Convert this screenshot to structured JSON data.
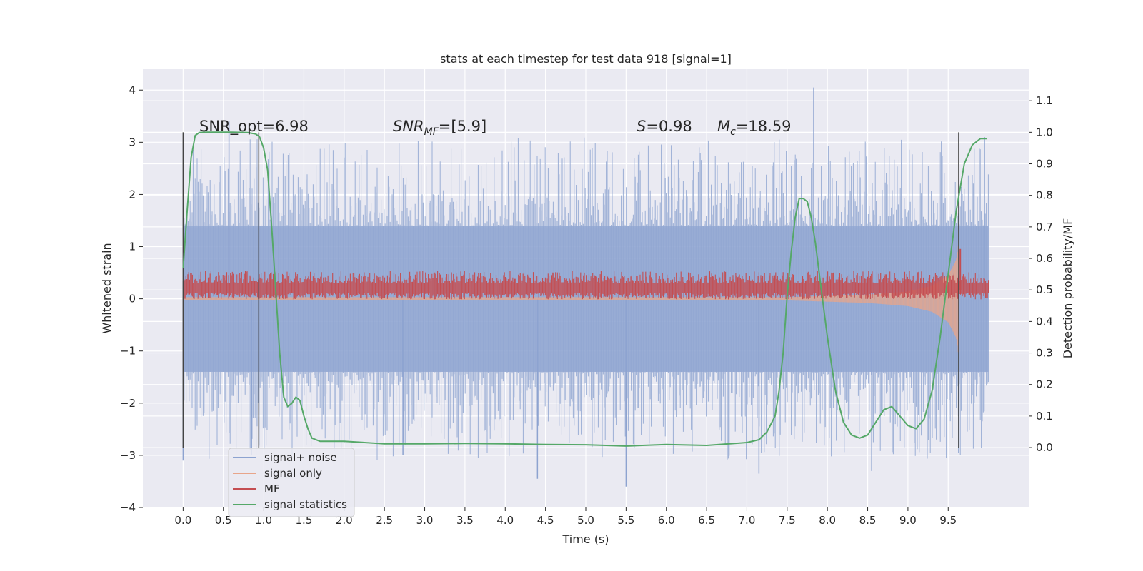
{
  "chart_data": {
    "type": "line",
    "title": "stats at each timestep for test data 918 [signal=1]",
    "xlabel": "Time (s)",
    "ylabel": "Whitened strain",
    "y2label": "Detection probability/MF",
    "xlim": [
      -0.5,
      10.5
    ],
    "ylim": [
      -4.0,
      4.4
    ],
    "y2lim": [
      -0.19,
      1.2
    ],
    "xticks": [
      "0.0",
      "0.5",
      "1.0",
      "1.5",
      "2.0",
      "2.5",
      "3.0",
      "3.5",
      "4.0",
      "4.5",
      "5.0",
      "5.5",
      "6.0",
      "6.5",
      "7.0",
      "7.5",
      "8.0",
      "8.5",
      "9.0",
      "9.5"
    ],
    "yticks": [
      "−4",
      "−3",
      "−2",
      "−1",
      "0",
      "1",
      "2",
      "3",
      "4"
    ],
    "y2ticks": [
      "0.0",
      "0.1",
      "0.2",
      "0.3",
      "0.4",
      "0.5",
      "0.6",
      "0.7",
      "0.8",
      "0.9",
      "1.0",
      "1.1"
    ],
    "grid": true,
    "legend_position": "lower-left",
    "annotations": {
      "snr_opt": "SNR_opt=6.98",
      "snr_mf_base": "SNR",
      "snr_mf_sub": "MF",
      "snr_mf_value": "=[5.9]",
      "s_symbol": "S",
      "s_value": "=0.98",
      "mc_symbol": "M",
      "mc_sub": "c",
      "mc_value": "=18.59"
    },
    "vertical_markers_x": [
      0.0,
      0.94,
      9.63
    ],
    "series": [
      {
        "name": "signal+ noise",
        "color": "#8da3d0",
        "axis": "left",
        "x_range": [
          0.0,
          10.0
        ],
        "band": {
          "upper_p90": 1.4,
          "upper_peak": 3.1,
          "lower_p90": -1.4,
          "lower_peak": -3.1
        },
        "extreme_spikes": [
          {
            "x": 0.0,
            "y": -3.1
          },
          {
            "x": 0.57,
            "y": 3.4
          },
          {
            "x": 0.85,
            "y": -3.0
          },
          {
            "x": 2.73,
            "y": -3.0
          },
          {
            "x": 4.4,
            "y": -3.45
          },
          {
            "x": 5.5,
            "y": -3.6
          },
          {
            "x": 7.15,
            "y": -3.35
          },
          {
            "x": 7.83,
            "y": 4.05
          },
          {
            "x": 8.55,
            "y": -3.3
          },
          {
            "x": 9.63,
            "y": -2.95
          },
          {
            "x": 9.95,
            "y": 3.1
          }
        ]
      },
      {
        "name": "signal only",
        "color": "#e8a58a",
        "axis": "left",
        "x": [
          0.0,
          7.5,
          8.5,
          9.0,
          9.3,
          9.5,
          9.6,
          9.63
        ],
        "envelope": [
          0.03,
          0.03,
          0.08,
          0.14,
          0.25,
          0.45,
          0.75,
          1.1
        ]
      },
      {
        "name": "MF",
        "color": "#c44e52",
        "axis": "right",
        "x_range": [
          0.0,
          10.0
        ],
        "baseline": 0.5,
        "band": [
          0.47,
          0.56
        ],
        "peak": {
          "x": 9.65,
          "y": 0.63
        }
      },
      {
        "name": "signal statistics",
        "color": "#55a868",
        "axis": "right",
        "x": [
          0.0,
          0.05,
          0.1,
          0.15,
          0.2,
          0.3,
          0.4,
          0.6,
          0.8,
          0.9,
          0.95,
          1.0,
          1.05,
          1.1,
          1.15,
          1.2,
          1.25,
          1.3,
          1.35,
          1.4,
          1.45,
          1.5,
          1.55,
          1.6,
          1.7,
          1.8,
          2.0,
          2.2,
          2.5,
          3.0,
          3.5,
          4.0,
          4.5,
          5.0,
          5.5,
          6.0,
          6.5,
          7.0,
          7.15,
          7.25,
          7.35,
          7.4,
          7.45,
          7.5,
          7.55,
          7.6,
          7.65,
          7.7,
          7.75,
          7.8,
          7.85,
          7.9,
          7.95,
          8.0,
          8.1,
          8.2,
          8.3,
          8.4,
          8.5,
          8.6,
          8.7,
          8.8,
          8.9,
          9.0,
          9.1,
          9.2,
          9.3,
          9.4,
          9.5,
          9.6,
          9.7,
          9.8,
          9.9,
          9.98
        ],
        "y": [
          0.57,
          0.75,
          0.92,
          0.99,
          0.999,
          1.0,
          1.0,
          1.0,
          0.999,
          0.995,
          0.985,
          0.95,
          0.88,
          0.7,
          0.5,
          0.3,
          0.16,
          0.13,
          0.14,
          0.16,
          0.15,
          0.1,
          0.06,
          0.03,
          0.02,
          0.02,
          0.02,
          0.017,
          0.012,
          0.012,
          0.013,
          0.012,
          0.01,
          0.009,
          0.005,
          0.01,
          0.007,
          0.016,
          0.025,
          0.05,
          0.1,
          0.18,
          0.3,
          0.48,
          0.62,
          0.73,
          0.79,
          0.79,
          0.78,
          0.73,
          0.65,
          0.55,
          0.45,
          0.35,
          0.18,
          0.08,
          0.04,
          0.03,
          0.04,
          0.08,
          0.12,
          0.13,
          0.1,
          0.07,
          0.06,
          0.09,
          0.18,
          0.35,
          0.55,
          0.75,
          0.9,
          0.96,
          0.98,
          0.98
        ]
      }
    ]
  }
}
